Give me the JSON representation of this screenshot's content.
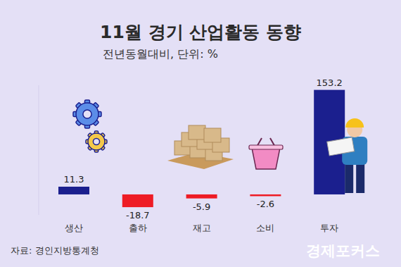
{
  "chart_data": {
    "type": "bar",
    "title": "11월 경기 산업활동 동향",
    "subtitle": "전년동월대비, 단위: %",
    "categories": [
      "생산",
      "출하",
      "재고",
      "소비",
      "투자"
    ],
    "values": [
      11.3,
      -18.7,
      -5.9,
      -2.6,
      153.2
    ],
    "colors": [
      "#1b1f8e",
      "#ee1c25",
      "#ee1c25",
      "#ee1c25",
      "#1b1f8e"
    ],
    "ylim": [
      -30,
      160
    ],
    "data_labels": true,
    "tick_labels": "x",
    "grid": false,
    "annotations": [
      "자료: 경인지방통계청",
      "경제포커스"
    ]
  }
}
